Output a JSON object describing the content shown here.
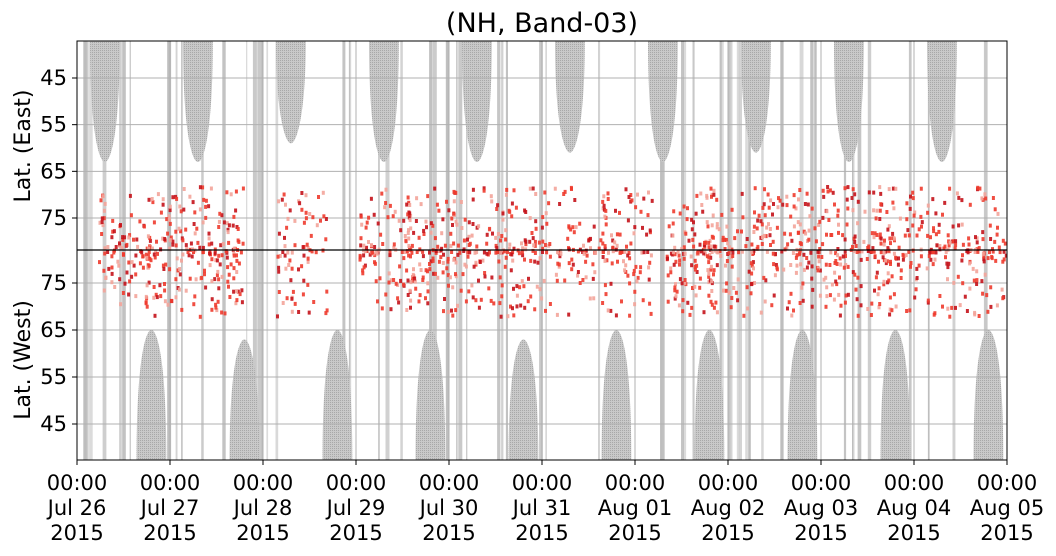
{
  "chart_data": {
    "type": "heatmap",
    "title": "(NH, Band-03)",
    "ylabel_east": "Lat. (East)",
    "ylabel_west": "Lat. (West)",
    "y_ticks_east": [
      "45",
      "55",
      "65",
      "75"
    ],
    "y_ticks_west": [
      "75",
      "65",
      "55",
      "45"
    ],
    "x_ticks": [
      {
        "time": "00:00",
        "date": "Jul 26",
        "year": "2015"
      },
      {
        "time": "00:00",
        "date": "Jul 27",
        "year": "2015"
      },
      {
        "time": "00:00",
        "date": "Jul 28",
        "year": "2015"
      },
      {
        "time": "00:00",
        "date": "Jul 29",
        "year": "2015"
      },
      {
        "time": "00:00",
        "date": "Jul 30",
        "year": "2015"
      },
      {
        "time": "00:00",
        "date": "Jul 31",
        "year": "2015"
      },
      {
        "time": "00:00",
        "date": "Aug 01",
        "year": "2015"
      },
      {
        "time": "00:00",
        "date": "Aug 02",
        "year": "2015"
      },
      {
        "time": "00:00",
        "date": "Aug 03",
        "year": "2015"
      },
      {
        "time": "00:00",
        "date": "Aug 04",
        "year": "2015"
      },
      {
        "time": "00:00",
        "date": "Aug 05",
        "year": "2015"
      }
    ],
    "x_range": [
      "2015-07-26 00:00",
      "2015-08-05 00:00"
    ],
    "grid": true,
    "colors": {
      "no_data": "#bdbdbd",
      "low": "#f3a49a",
      "mid": "#ee3b2e",
      "high": "#c4121a",
      "center_line": "#000000"
    },
    "nodata_lobes_east": [
      {
        "day": 0.3,
        "lat_extent": 63
      },
      {
        "day": 1.3,
        "lat_extent": 63
      },
      {
        "day": 2.3,
        "lat_extent": 59
      },
      {
        "day": 3.3,
        "lat_extent": 63
      },
      {
        "day": 4.3,
        "lat_extent": 63
      },
      {
        "day": 5.3,
        "lat_extent": 61
      },
      {
        "day": 6.3,
        "lat_extent": 63
      },
      {
        "day": 7.3,
        "lat_extent": 61
      },
      {
        "day": 8.3,
        "lat_extent": 63
      },
      {
        "day": 9.3,
        "lat_extent": 63
      }
    ],
    "nodata_lobes_west": [
      {
        "day": 0.8,
        "lat_extent": 65
      },
      {
        "day": 1.8,
        "lat_extent": 63
      },
      {
        "day": 2.8,
        "lat_extent": 65
      },
      {
        "day": 3.8,
        "lat_extent": 65
      },
      {
        "day": 4.8,
        "lat_extent": 63
      },
      {
        "day": 5.8,
        "lat_extent": 65
      },
      {
        "day": 6.8,
        "lat_extent": 65
      },
      {
        "day": 7.8,
        "lat_extent": 65
      },
      {
        "day": 8.8,
        "lat_extent": 65
      },
      {
        "day": 9.8,
        "lat_extent": 65
      }
    ],
    "activity_days": [
      0.5,
      1.0,
      1.5,
      2.4,
      3.3,
      3.8,
      4.3,
      4.8,
      5.4,
      5.9,
      6.6,
      7.0,
      7.5,
      8.0,
      8.5,
      8.8,
      9.4,
      9.9
    ]
  }
}
